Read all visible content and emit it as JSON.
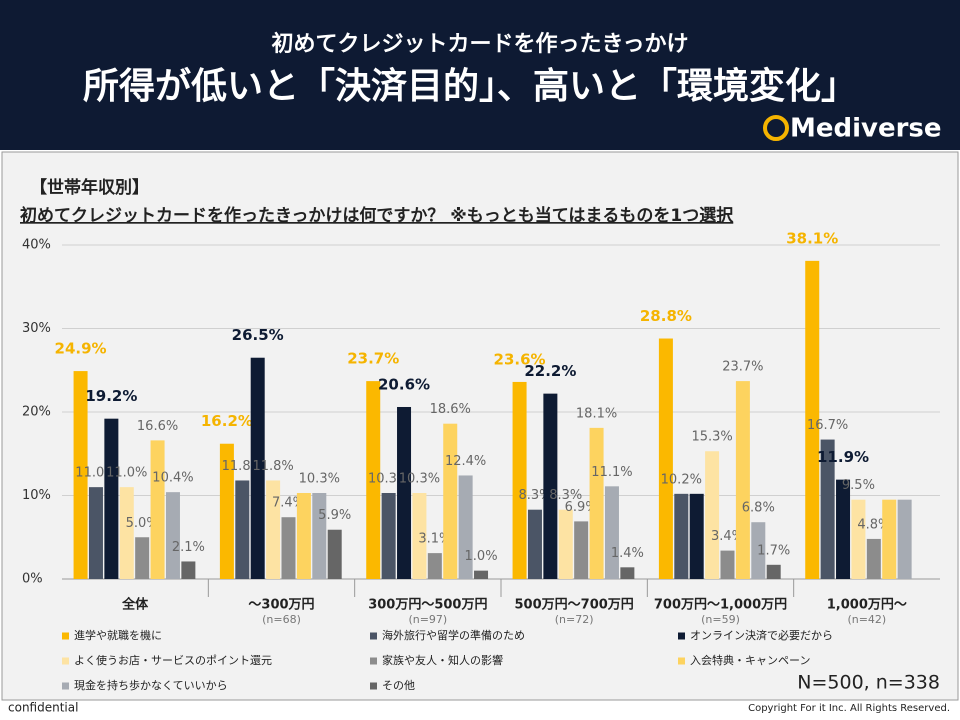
{
  "header": {
    "subtitle": "初めてクレジットカードを作ったきっかけ",
    "title": "所得が低いと「決済目的」、高いと「環境変化」",
    "logo": "Mediverse"
  },
  "chart_data": {
    "type": "bar",
    "section_label": "【世帯年収別】",
    "question": "初めてクレジットカードを作ったきっかけは何ですか？ ※もっとも当てはまるものを1つ選択",
    "categories": [
      "全体",
      "～300万円",
      "300万円～500万円",
      "500万円～700万円",
      "700万円～1,000万円",
      "1,000万円～"
    ],
    "category_notes": [
      null,
      "(n=68)",
      "(n=97)",
      "(n=72)",
      "(n=59)",
      "(n=42)"
    ],
    "series": [
      {
        "name": "進学や就職を機に",
        "color": "#fbb800",
        "values": [
          24.9,
          16.2,
          23.7,
          23.6,
          28.8,
          38.1
        ],
        "value_labels": [
          "24.9%",
          "16.2%",
          "23.7%",
          "23.6%",
          "28.8%",
          "38.1%"
        ]
      },
      {
        "name": "海外旅行や留学の準備のため",
        "color": "#4b5566",
        "values": [
          11.0,
          11.8,
          10.3,
          8.3,
          10.2,
          16.7
        ],
        "value_labels": [
          "11.0%",
          "11.8%",
          "10.3%",
          "8.3%",
          "10.2%",
          "16.7%"
        ]
      },
      {
        "name": "オンライン決済で必要だから",
        "color": "#0e1b33",
        "values": [
          19.2,
          26.5,
          20.6,
          22.2,
          10.2,
          11.9
        ],
        "value_labels": [
          "19.2%",
          "26.5%",
          "20.6%",
          "22.2%",
          null,
          "11.9%"
        ]
      },
      {
        "name": "よく使うお店・サービスのポイント還元",
        "color": "#fde3a3",
        "values": [
          11.0,
          11.8,
          10.3,
          8.3,
          15.3,
          9.5
        ],
        "value_labels": [
          "11.0%",
          "11.8%",
          "10.3%",
          "8.3%",
          "15.3%",
          "9.5%"
        ]
      },
      {
        "name": "家族や友人・知人の影響",
        "color": "#8c8c8c",
        "values": [
          5.0,
          7.4,
          3.1,
          6.9,
          3.4,
          4.8
        ],
        "value_labels": [
          "5.0%",
          "7.4%",
          "3.1%",
          "6.9%",
          "3.4%",
          "4.8%"
        ]
      },
      {
        "name": "入会特典・キャンペーン",
        "color": "#fdd35f",
        "values": [
          16.6,
          10.3,
          18.6,
          18.1,
          23.7,
          9.5
        ],
        "value_labels": [
          "16.6%",
          null,
          "18.6%",
          "18.1%",
          "23.7%",
          null
        ]
      },
      {
        "name": "現金を持ち歩かなくていいから",
        "color": "#a6abb3",
        "values": [
          10.4,
          10.3,
          12.4,
          11.1,
          6.8,
          9.5
        ],
        "value_labels": [
          "10.4%",
          "10.3%",
          "12.4%",
          "11.1%",
          "6.8%",
          null
        ]
      },
      {
        "name": "その他",
        "color": "#666666",
        "values": [
          2.1,
          5.9,
          1.0,
          1.4,
          1.7,
          0
        ],
        "value_labels": [
          "2.1%",
          "5.9%",
          "1.0%",
          "1.4%",
          "1.7%",
          null
        ]
      }
    ],
    "ylim": [
      0,
      40
    ],
    "yticks": [
      {
        "value": 0,
        "label": "0%"
      },
      {
        "value": 10,
        "label": "10%"
      },
      {
        "value": 20,
        "label": "20%"
      },
      {
        "value": 30,
        "label": "30%"
      },
      {
        "value": 40,
        "label": "40%"
      }
    ],
    "grid": true,
    "legend": "bottom",
    "sample_note": "N=500, n=338"
  },
  "footer": {
    "left": "confidential",
    "right": "Copyright For it Inc. All Rights Reserved."
  }
}
